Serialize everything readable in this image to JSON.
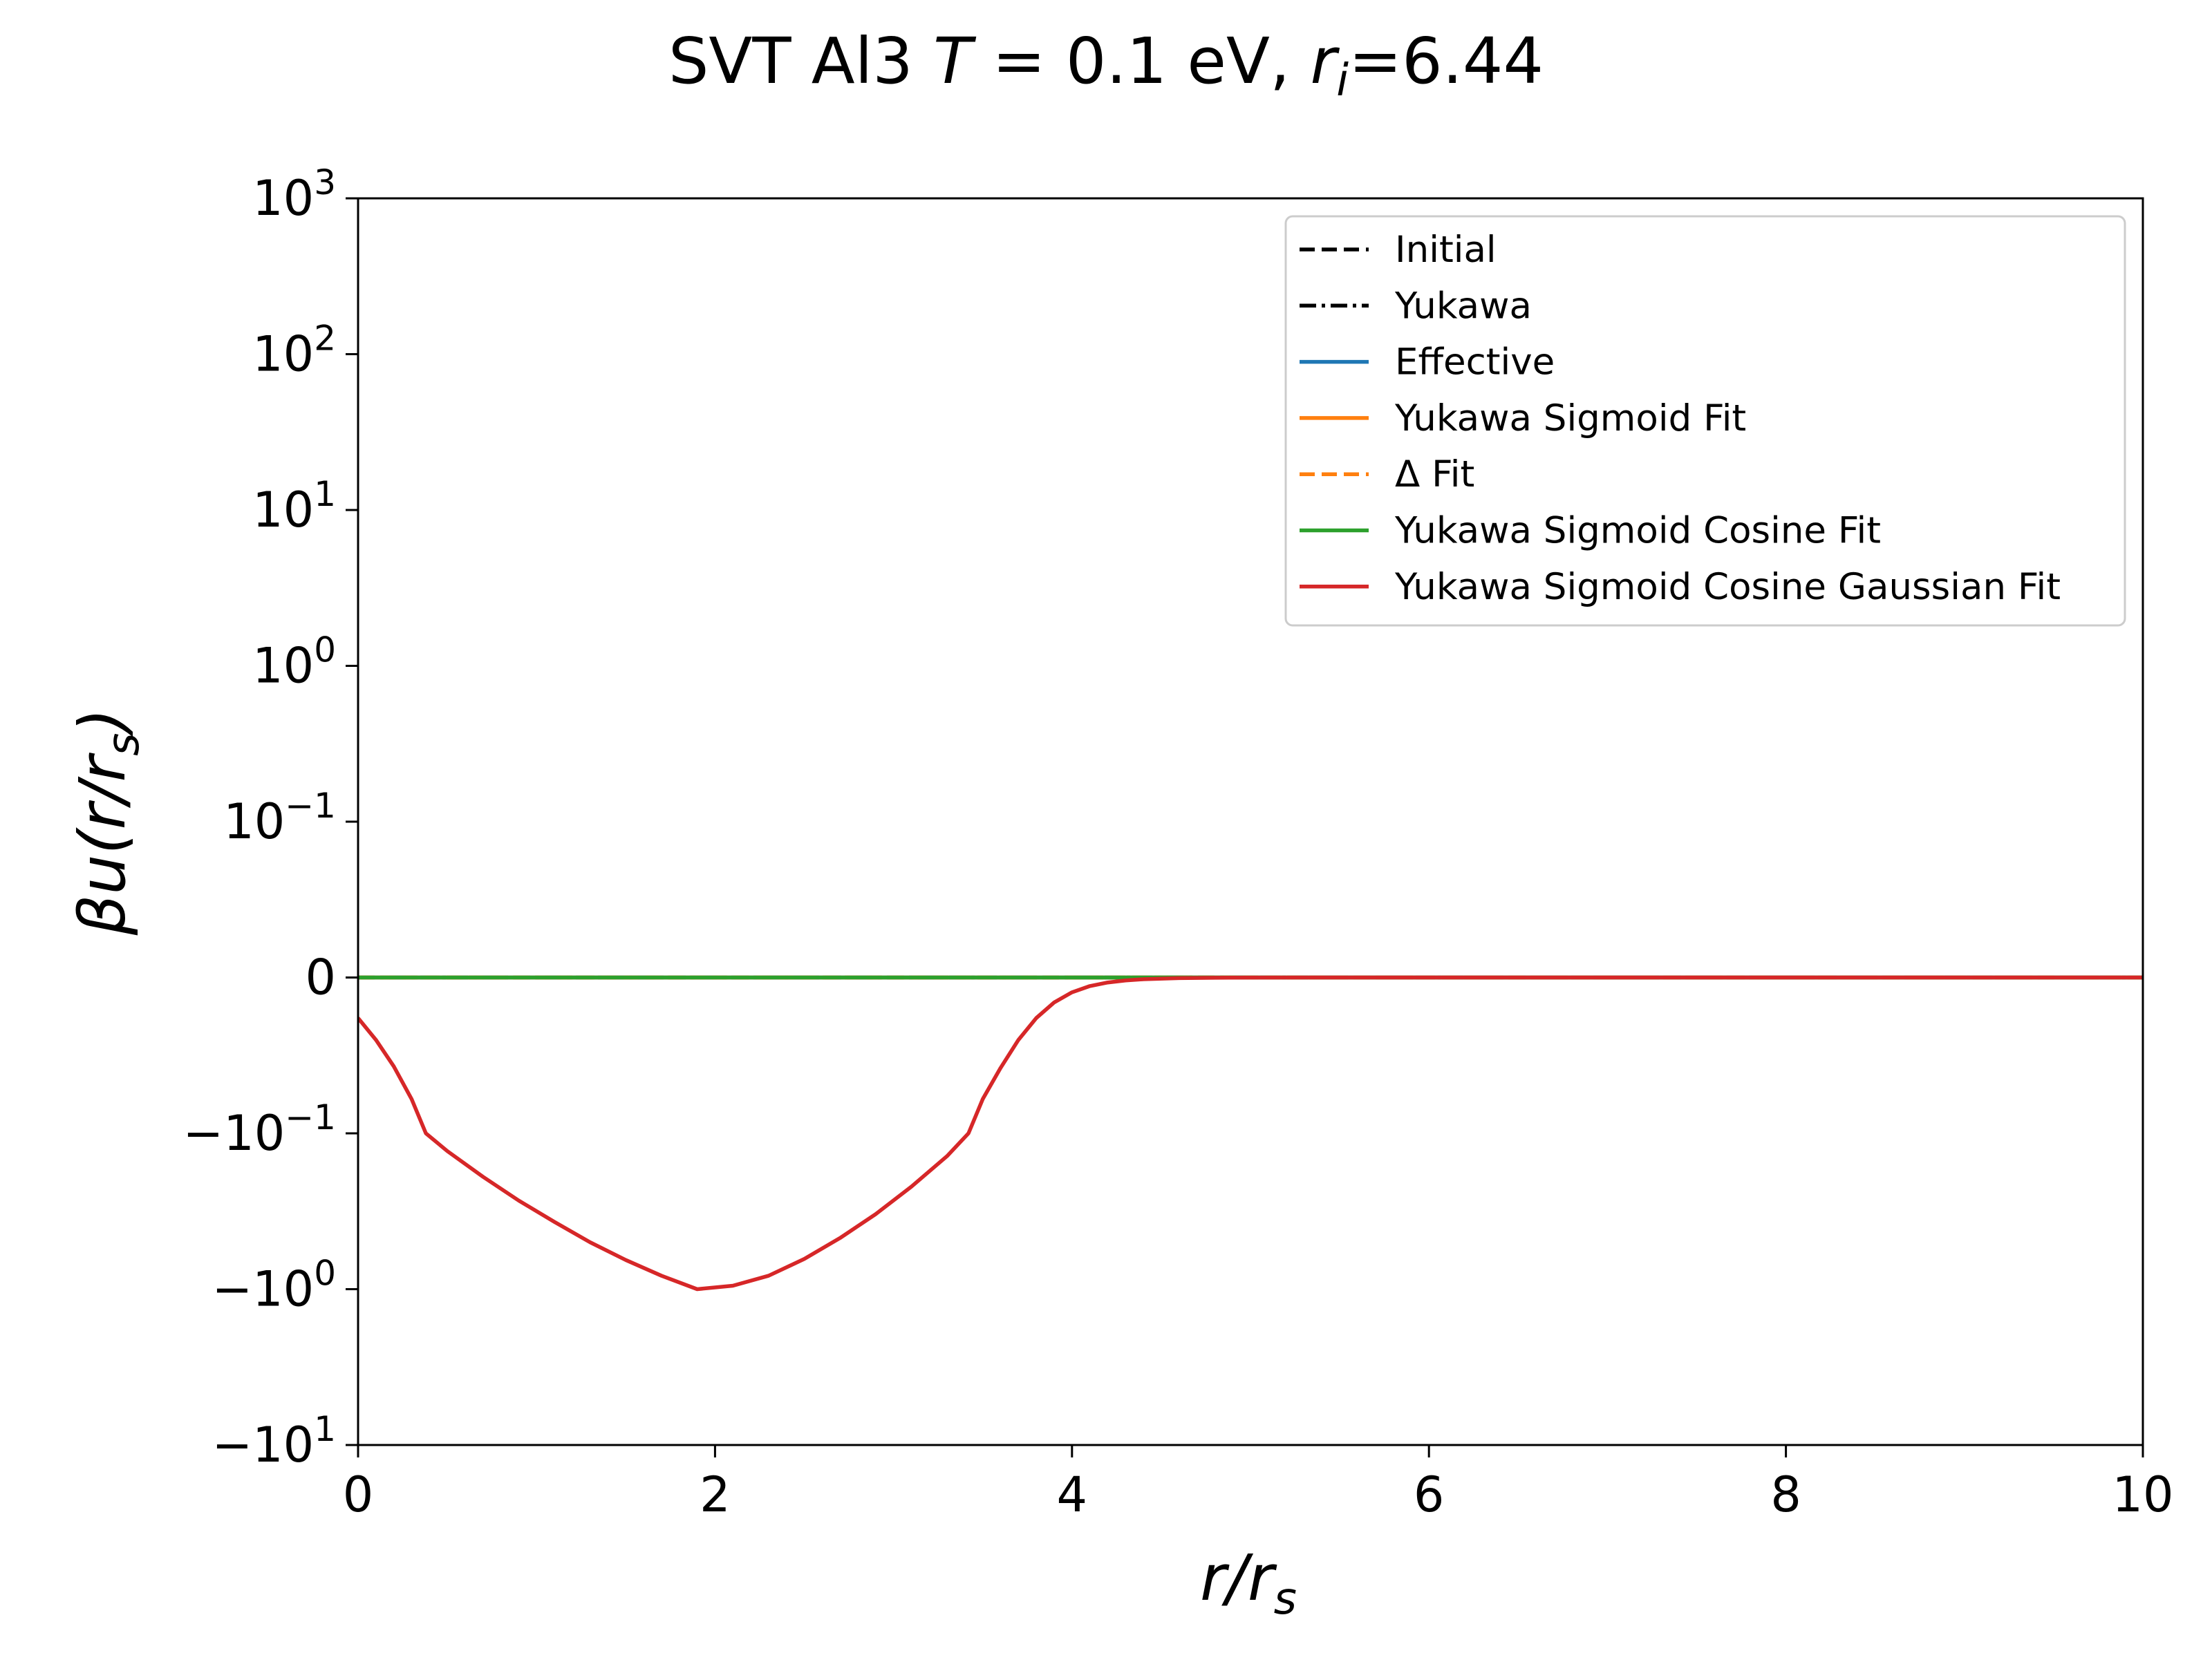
{
  "chart_data": {
    "type": "line",
    "title": "SVT Al3 T = 0.1 eV, r_i=6.44",
    "title_parts": {
      "prefix": "SVT Al3 ",
      "T": "T",
      "T_value": " = 0.1 eV, ",
      "r": "r",
      "r_sub": "i",
      "r_value": "=6.44"
    },
    "xlabel": "r/r_s",
    "ylabel": "βu(r/r_s)",
    "xlim": [
      0,
      10
    ],
    "ylim_symlog": [
      -10,
      1000
    ],
    "yscale": "symlog",
    "linthresh": 0.1,
    "grid": false,
    "legend_placement": "top-right",
    "x_ticks": [
      {
        "value": 0,
        "label": "0"
      },
      {
        "value": 2,
        "label": "2"
      },
      {
        "value": 4,
        "label": "4"
      },
      {
        "value": 6,
        "label": "6"
      },
      {
        "value": 8,
        "label": "8"
      },
      {
        "value": 10,
        "label": "10"
      }
    ],
    "y_ticks": [
      {
        "value": 1000,
        "sign": "",
        "base": "10",
        "exp": "3"
      },
      {
        "value": 100,
        "sign": "",
        "base": "10",
        "exp": "2"
      },
      {
        "value": 10,
        "sign": "",
        "base": "10",
        "exp": "1"
      },
      {
        "value": 1,
        "sign": "",
        "base": "10",
        "exp": "0"
      },
      {
        "value": 0.1,
        "sign": "",
        "base": "10",
        "exp": "−1"
      },
      {
        "value": 0,
        "sign": "",
        "base": "0",
        "exp": ""
      },
      {
        "value": -0.1,
        "sign": "−",
        "base": "10",
        "exp": "−1"
      },
      {
        "value": -1,
        "sign": "−",
        "base": "10",
        "exp": "0"
      },
      {
        "value": -10,
        "sign": "−",
        "base": "10",
        "exp": "1"
      }
    ],
    "series": [
      {
        "name": "Initial",
        "color": "#000000",
        "dash": "dashed",
        "x": [
          0,
          10
        ],
        "y": [
          0,
          0
        ]
      },
      {
        "name": "Yukawa",
        "color": "#000000",
        "dash": "dashdot",
        "x": [
          0,
          10
        ],
        "y": [
          0,
          0
        ]
      },
      {
        "name": "Effective",
        "color": "#1f77b4",
        "dash": "solid",
        "x": [
          0,
          10
        ],
        "y": [
          0,
          0
        ]
      },
      {
        "name": "Yukawa Sigmoid Fit",
        "color": "#ff7f0e",
        "dash": "solid",
        "x": [
          0,
          10
        ],
        "y": [
          0,
          0
        ]
      },
      {
        "name": "Δ Fit",
        "color": "#ff7f0e",
        "dash": "dashed",
        "x": [
          0,
          10
        ],
        "y": [
          0,
          0
        ]
      },
      {
        "name": "Yukawa Sigmoid Cosine Fit",
        "color": "#2ca02c",
        "dash": "solid",
        "x": [
          0,
          4.8,
          10
        ],
        "y": [
          0,
          0,
          0
        ]
      },
      {
        "name": "Yukawa Sigmoid Cosine Gaussian Fit",
        "color": "#d62728",
        "dash": "solid",
        "x": [
          0,
          0.1,
          0.2,
          0.3,
          0.38,
          0.5,
          0.7,
          0.9,
          1.1,
          1.3,
          1.5,
          1.7,
          1.9,
          2.1,
          2.3,
          2.5,
          2.7,
          2.9,
          3.1,
          3.3,
          3.42,
          3.5,
          3.6,
          3.7,
          3.8,
          3.9,
          4.0,
          4.1,
          4.2,
          4.3,
          4.4,
          4.6,
          4.8,
          5.0,
          5.5,
          6,
          7,
          8,
          9,
          10
        ],
        "y": [
          -0.026,
          -0.04,
          -0.057,
          -0.078,
          -0.1,
          -0.13,
          -0.19,
          -0.27,
          -0.37,
          -0.5,
          -0.65,
          -0.82,
          -1.0,
          -0.95,
          -0.82,
          -0.64,
          -0.47,
          -0.33,
          -0.22,
          -0.14,
          -0.1,
          -0.078,
          -0.058,
          -0.04,
          -0.026,
          -0.016,
          -0.0095,
          -0.0055,
          -0.0032,
          -0.0019,
          -0.0011,
          -0.0004,
          -0.00015,
          -5e-05,
          0,
          0,
          0,
          0,
          0,
          0
        ]
      }
    ]
  }
}
